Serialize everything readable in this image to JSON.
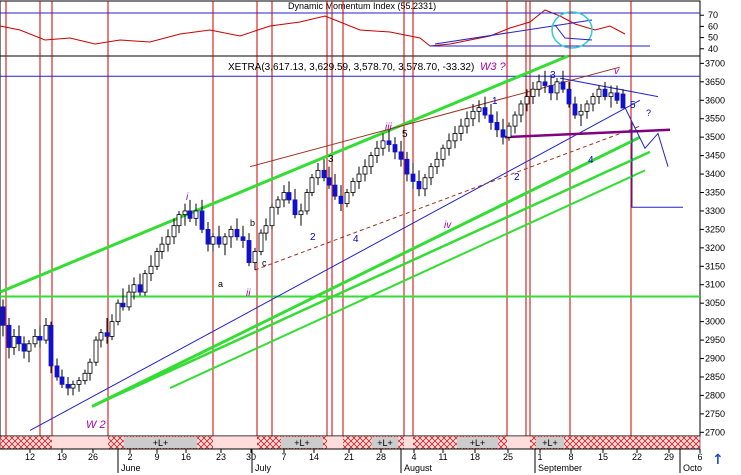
{
  "chart_data": {
    "type": "candlestick",
    "indicator": {
      "title": "Dynamic Momentum Index (55.2331)",
      "yticks": [
        70,
        60,
        50,
        40
      ]
    },
    "price": {
      "title": "XETRA(3,617.13, 3,629.59, 3,578.70, 3,578.70, -33.32)",
      "yticks": [
        3700,
        3650,
        3600,
        3550,
        3500,
        3450,
        3400,
        3350,
        3300,
        3250,
        3200,
        3150,
        3100,
        3050,
        3000,
        2950,
        2900,
        2850,
        2800,
        2750,
        2700
      ],
      "ylim": [
        2690,
        3720
      ]
    },
    "x_day_labels": [
      "12",
      "19",
      "26",
      "2",
      "9",
      "16",
      "23",
      "30",
      "7",
      "14",
      "21",
      "28",
      "4",
      "11",
      "18",
      "25",
      "1",
      "8",
      "15",
      "22",
      "29",
      "6"
    ],
    "x_month_labels": [
      "June",
      "July",
      "August",
      "September",
      "Octo"
    ],
    "period_labels": [
      "+L+",
      "+L+",
      "+L+",
      "+L+",
      "+L+"
    ],
    "wave_labels": [
      "W 2",
      "i",
      "ii",
      "iii",
      "iv",
      "v",
      "W3 ?",
      "1",
      "2",
      "3",
      "4",
      "5",
      "a",
      "b",
      "c",
      "?"
    ],
    "colors": {
      "up_candle": "#ffffff",
      "down_candle": "#1111cc",
      "channel": "#33dd33",
      "trend_blue": "#2222cc",
      "vertical_lines": "#cc0000",
      "wave_label_purple": "#aa00aa",
      "momentum_line": "#cc0000",
      "neckline": "#800080",
      "resistance": "#993322"
    }
  },
  "ui": {
    "scroll_icon": "up-arrow-icon",
    "scroll_glyph": "↑"
  }
}
